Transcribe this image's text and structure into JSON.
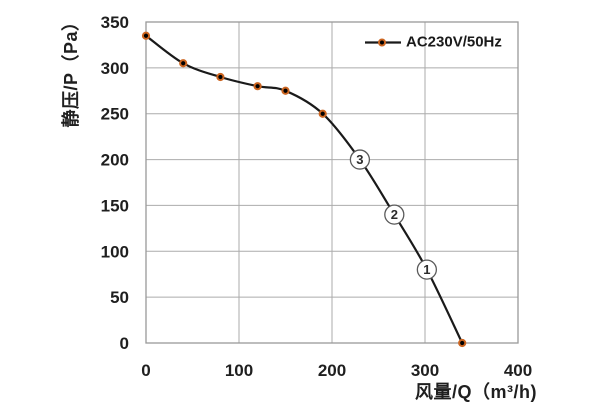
{
  "chart_data": {
    "type": "line",
    "title": "",
    "xlabel": "风量/Q（m³/h)",
    "ylabel": "静压/P（Pa）",
    "xlim": [
      0,
      400
    ],
    "ylim": [
      0,
      350
    ],
    "xticks": [
      0,
      100,
      200,
      300,
      400
    ],
    "yticks": [
      0,
      50,
      100,
      150,
      200,
      250,
      300,
      350
    ],
    "grid": true,
    "legend_position": "top-right-inside",
    "series": [
      {
        "name": "AC230V/50Hz",
        "points": [
          {
            "q": 0,
            "p": 335
          },
          {
            "q": 40,
            "p": 305
          },
          {
            "q": 80,
            "p": 290
          },
          {
            "q": 120,
            "p": 280
          },
          {
            "q": 150,
            "p": 275
          },
          {
            "q": 190,
            "p": 250
          },
          {
            "q": 340,
            "p": 0
          }
        ]
      }
    ],
    "annotations": [
      {
        "label": "3",
        "q": 230,
        "p": 200
      },
      {
        "label": "2",
        "q": 267,
        "p": 140
      },
      {
        "label": "1",
        "q": 302,
        "p": 80
      }
    ],
    "colors": {
      "line": "#1a1a1a",
      "marker_fill": "#000000",
      "marker_ring": "#cc6520",
      "grid": "#ababab",
      "frame": "#999999",
      "text": "#1f1f1f",
      "annotation_ring": "#5a5a5a"
    }
  }
}
